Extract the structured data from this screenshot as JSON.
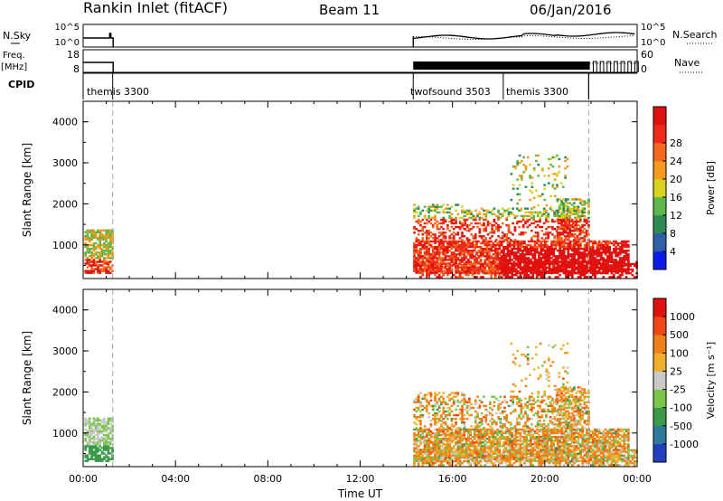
{
  "header": {
    "title": "Rankin Inlet (fitACF)",
    "beam": "Beam 11",
    "date": "06/Jan/2016"
  },
  "labels": {
    "nsky": "N.Sky",
    "nsearch": "N.Search",
    "freq": "Freq.",
    "freq_unit": "[MHz]",
    "nave": "Nave",
    "cpid": "CPID",
    "slant_range": "Slant Range [km]",
    "time_axis": "Time UT"
  },
  "noise_panel": {
    "left_ticks": [
      "10^5",
      "10^0"
    ],
    "right_ticks": [
      "10^5",
      "10^0"
    ]
  },
  "freq_panel": {
    "left_ticks": [
      "18",
      "8"
    ],
    "right_ticks": [
      "60",
      "0"
    ]
  },
  "cpid_segments": [
    {
      "label": "themis 3300",
      "start_h": 0.0,
      "end_h": 1.28
    },
    {
      "label": "twofsound 3503",
      "start_h": 14.3,
      "end_h": 21.9
    },
    {
      "label": "themis 3300",
      "start_h": 18.2,
      "end_h": 21.9
    }
  ],
  "time_ticks": [
    "00:00",
    "04:00",
    "08:00",
    "12:00",
    "16:00",
    "20:00",
    "00:00"
  ],
  "range_ticks": [
    "1000",
    "2000",
    "3000",
    "4000"
  ],
  "power_scale": {
    "label": "Power [dB]",
    "ticks": [
      "4",
      "8",
      "12",
      "16",
      "20",
      "24",
      "28"
    ],
    "colors": [
      "#0b1be8",
      "#2e5fa8",
      "#2f8a55",
      "#5cb84a",
      "#d7d21e",
      "#f39a1f",
      "#f3681c",
      "#ee2a1c",
      "#e0110e"
    ]
  },
  "velocity_scale": {
    "label": "Velocity [m s⁻¹]",
    "ticks": [
      "1000",
      "500",
      "100",
      "25",
      "-25",
      "-100",
      "-500",
      "-1000"
    ],
    "colors": [
      "#2040c0",
      "#2f7a9c",
      "#3b9a4a",
      "#7bc74a",
      "#c9c9c9",
      "#f0b02a",
      "#f0801c",
      "#f04818",
      "#e0110e"
    ]
  },
  "chart_data": {
    "type": "heatmap",
    "x_range_hours": [
      0,
      24
    ],
    "y_range_km": [
      180,
      4500
    ],
    "panels": [
      {
        "quantity": "Power",
        "unit": "dB",
        "ylabel": "Slant Range [km]"
      },
      {
        "quantity": "Velocity",
        "unit": "m s^-1",
        "ylabel": "Slant Range [km]"
      }
    ],
    "data_periods_hours": [
      [
        0.0,
        1.3
      ],
      [
        14.3,
        24.0
      ]
    ],
    "dashed_markers_hours": [
      1.28,
      21.9
    ],
    "xlabel": "Time UT"
  }
}
